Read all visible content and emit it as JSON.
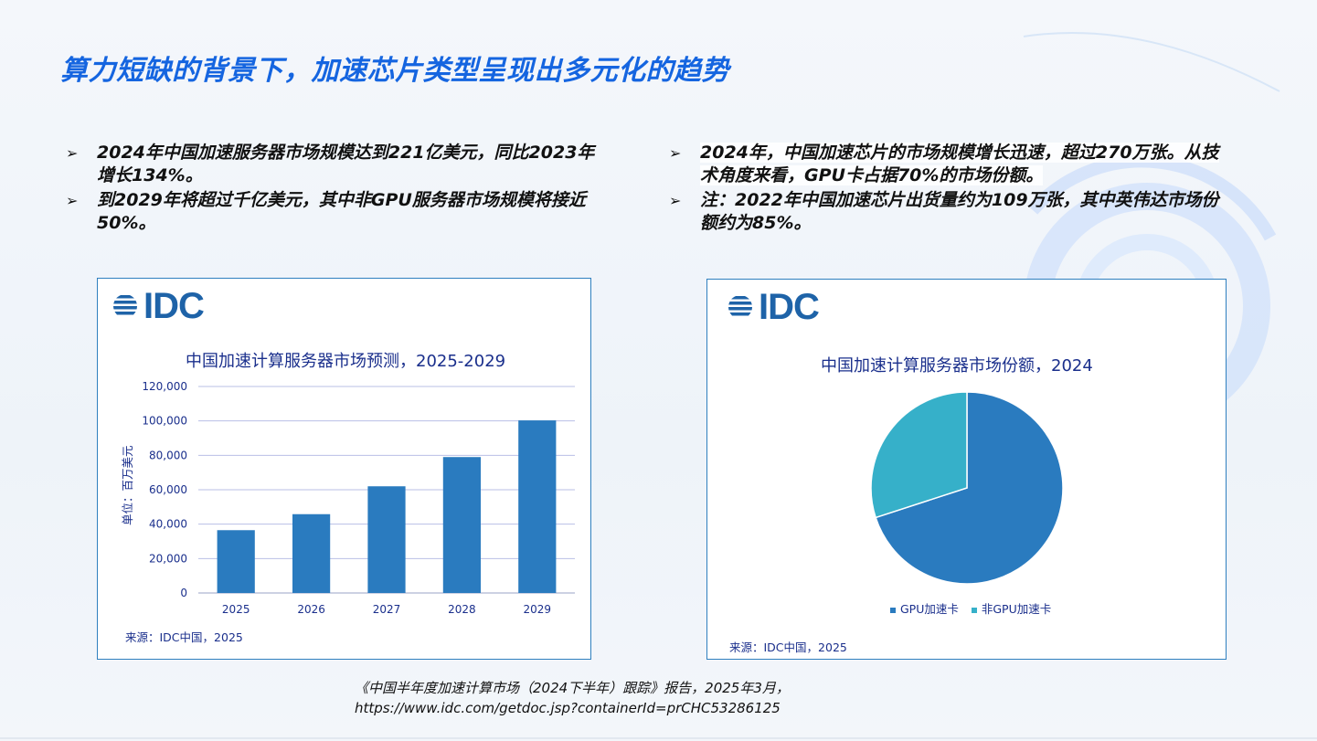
{
  "page": {
    "title": "算力短缺的背景下，加速芯片类型呈现出多元化的趋势",
    "bullets_left": [
      "2024年中国加速服务器市场规模达到221亿美元，同比2023年增长134%。",
      "到2029年将超过千亿美元，其中非GPU服务器市场规模将接近50%。"
    ],
    "bullets_right": [
      "2024年，中国加速芯片的市场规模增长迅速，超过270万张。从技术角度来看，GPU卡占据70%的市场份额。",
      "注：2022年中国加速芯片出货量约为109万张，其中英伟达市场份额约为85%。"
    ],
    "footnote_line1": "《中国半年度加速计算市场（2024下半年）跟踪》报告，2025年3月，",
    "footnote_line2": "https://www.idc.com/getdoc.jsp?containerId=prCHC53286125",
    "colors": {
      "title": "#1565e0",
      "bar": "#2a7bbf",
      "pie_gpu": "#2a7bbf",
      "pie_non_gpu": "#36b0c9",
      "chart_text": "#1a2f8c"
    }
  },
  "logos": {
    "left": "IDC",
    "right": "IDC"
  },
  "chart_data": [
    {
      "type": "bar",
      "title": "中国加速计算服务器市场预测，2025-2029",
      "categories": [
        "2025",
        "2026",
        "2027",
        "2028",
        "2029"
      ],
      "values": [
        36500,
        45800,
        62000,
        79000,
        100300
      ],
      "ylabel": "单位：百万美元",
      "xlabel": "",
      "ylim": [
        0,
        120000
      ],
      "yticks": [
        0,
        20000,
        40000,
        60000,
        80000,
        100000,
        120000
      ],
      "ytick_labels": [
        "0",
        "20,000",
        "40,000",
        "60,000",
        "80,000",
        "100,000",
        "120,000"
      ],
      "grid": true,
      "source": "来源：IDC中国，2025"
    },
    {
      "type": "pie",
      "title": "中国加速计算服务器市场份额，2024",
      "labels": [
        "GPU加速卡",
        "非GPU加速卡"
      ],
      "values": [
        70,
        30
      ],
      "legend": "bottom",
      "source": "来源：IDC中国，2025"
    }
  ]
}
